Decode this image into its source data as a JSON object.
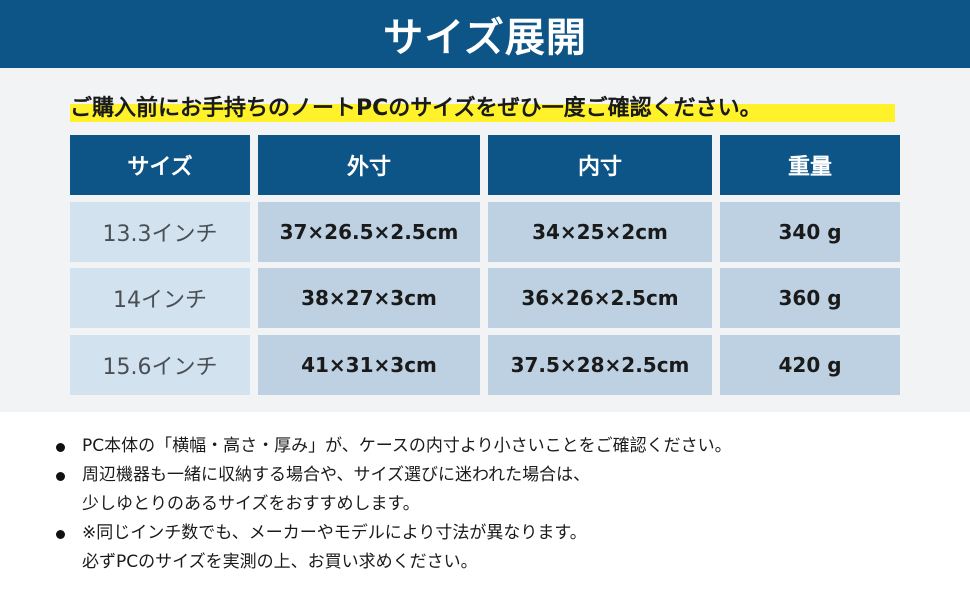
{
  "title": "サイズ展開",
  "subtitle": "ご購入前にお手持ちのノートPCのサイズをぜひ一度ご確認ください。",
  "table": {
    "headers": [
      "サイズ",
      "外寸",
      "内寸",
      "重量"
    ],
    "rows": [
      [
        "13.3インチ",
        "37×26.5×2.5cm",
        "34×25×2cm",
        "340 g"
      ],
      [
        "14インチ",
        "38×27×3cm",
        "36×26×2.5cm",
        "360 g"
      ],
      [
        "15.6インチ",
        "41×31×3cm",
        "37.5×28×2.5cm",
        "420 g"
      ]
    ]
  },
  "notes": [
    {
      "line1": "PC本体の「横幅・高さ・厚み」が、ケースの内寸より小さいことをご確認ください。",
      "line2": ""
    },
    {
      "line1": "周辺機器も一緒に収納する場合や、サイズ選びに迷われた場合は、",
      "line2": "少しゆとりのあるサイズをおすすめします。"
    },
    {
      "line1": "※同じインチ数でも、メーカーやモデルにより寸法が異なります。",
      "line2": "必ずPCのサイズを実測の上、お買い求めください。"
    }
  ],
  "colors": {
    "brand": "#0d5587",
    "highlight": "#fff22a",
    "cell_first": "#d2e2ef",
    "cell": "#bdd1e2"
  }
}
